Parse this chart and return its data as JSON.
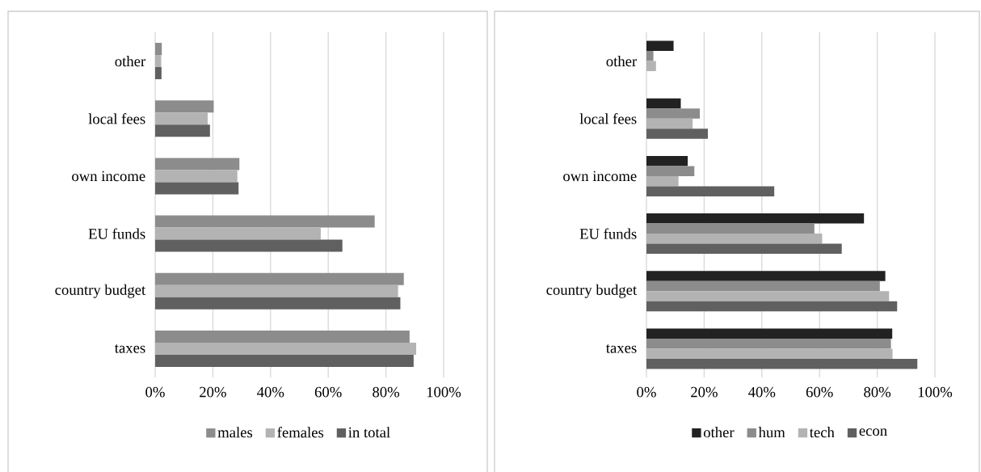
{
  "chart_data": [
    {
      "type": "bar",
      "orientation": "horizontal",
      "categories": [
        "other",
        "local fees",
        "own income",
        "EU funds",
        "country budget",
        "taxes"
      ],
      "series": [
        {
          "name": "males",
          "color": "#8c8c8c",
          "values": [
            2.3,
            20.3,
            29.2,
            76.1,
            86.2,
            88.2
          ]
        },
        {
          "name": "females",
          "color": "#b3b3b3",
          "values": [
            2.1,
            18.2,
            28.5,
            57.4,
            84.2,
            90.5
          ]
        },
        {
          "name": "in total",
          "color": "#606060",
          "values": [
            2.2,
            19.0,
            28.9,
            64.9,
            85.0,
            89.6
          ]
        }
      ],
      "xlim": [
        0,
        100
      ],
      "xticks": [
        {
          "value": 0,
          "label": "0%"
        },
        {
          "value": 20,
          "label": "20%"
        },
        {
          "value": 40,
          "label": "40%"
        },
        {
          "value": 60,
          "label": "60%"
        },
        {
          "value": 80,
          "label": "80%"
        },
        {
          "value": 100,
          "label": "100%"
        }
      ],
      "grid": "x",
      "legend": "bottom"
    },
    {
      "type": "bar",
      "orientation": "horizontal",
      "categories": [
        "other",
        "local fees",
        "own income",
        "EU funds",
        "country budget",
        "taxes"
      ],
      "series": [
        {
          "name": "other",
          "color": "#222222",
          "values": [
            9.4,
            11.9,
            14.3,
            75.4,
            82.8,
            85.2
          ]
        },
        {
          "name": "hum",
          "color": "#8c8c8c",
          "values": [
            2.4,
            18.5,
            16.6,
            58.2,
            80.9,
            84.8
          ]
        },
        {
          "name": "tech",
          "color": "#b3b3b3",
          "values": [
            3.3,
            16.0,
            11.1,
            60.9,
            84.1,
            85.3
          ]
        },
        {
          "name": "econ",
          "color": "#606060",
          "values": [
            0,
            21.3,
            44.3,
            67.7,
            86.9,
            93.9
          ]
        }
      ],
      "xlim": [
        0,
        100
      ],
      "xticks": [
        {
          "value": 0,
          "label": "0%"
        },
        {
          "value": 20,
          "label": "20%"
        },
        {
          "value": 40,
          "label": "40%"
        },
        {
          "value": 60,
          "label": "60%"
        },
        {
          "value": 80,
          "label": "80%"
        },
        {
          "value": 100,
          "label": "100%"
        }
      ],
      "grid": "x",
      "legend": "bottom"
    }
  ]
}
